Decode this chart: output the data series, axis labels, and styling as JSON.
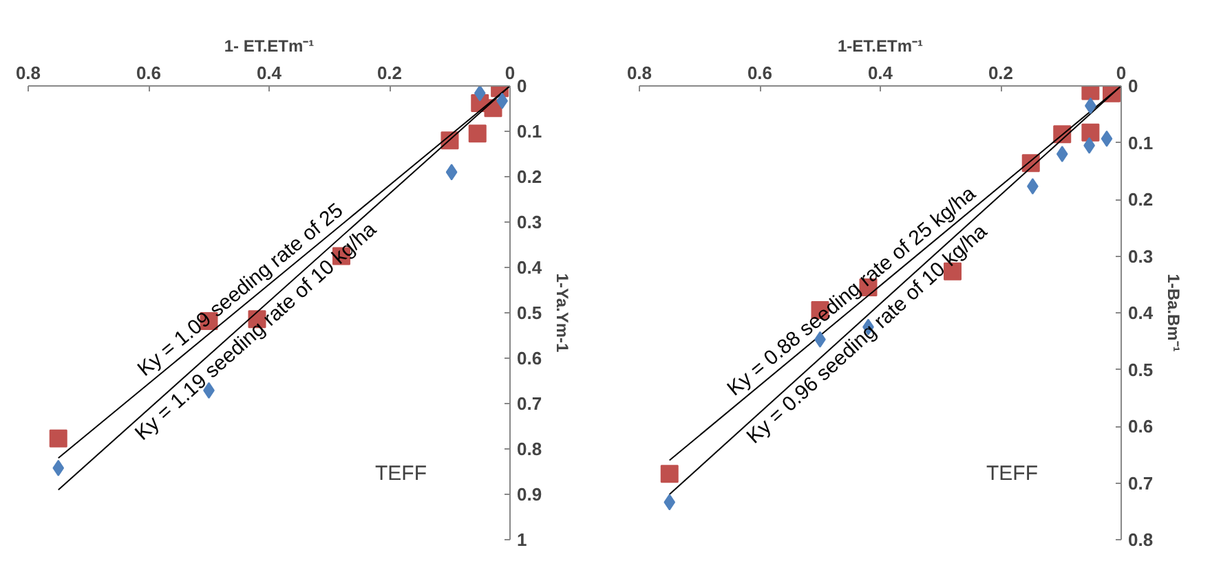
{
  "chart_data": [
    {
      "type": "scatter",
      "xlabel": "1- ET.ETm⁻¹",
      "ylabel": "1-Ya.Ym-1",
      "xlim": [
        0.8,
        0
      ],
      "ylim": [
        1,
        0
      ],
      "xticks": [
        0.8,
        0.6,
        0.4,
        0.2,
        0
      ],
      "yticks": [
        0,
        0.1,
        0.2,
        0.3,
        0.4,
        0.5,
        0.6,
        0.7,
        0.8,
        0.9,
        1
      ],
      "annotations": [
        "TEFF"
      ],
      "grid": false,
      "legend": false,
      "series": [
        {
          "type": "scatter",
          "marker": "diamond",
          "color": "#4f81bd",
          "x": [
            0.75,
            0.5,
            0.097,
            0.05,
            0.013
          ],
          "values": [
            0.842,
            0.671,
            0.19,
            0.016,
            0.033
          ]
        },
        {
          "type": "scatter",
          "marker": "square",
          "color": "#c0504d",
          "x": [
            0.75,
            0.5,
            0.42,
            0.28,
            0.1,
            0.054,
            0.05,
            0.028,
            0.017
          ],
          "values": [
            0.777,
            0.518,
            0.514,
            0.375,
            0.12,
            0.105,
            0.038,
            0.049,
            0.005
          ]
        },
        {
          "type": "line",
          "marker": "none",
          "color": "#000000",
          "name": "Ky = 1.09 seeding rate of 25",
          "x": [
            0,
            0.75
          ],
          "values": [
            0,
            0.82
          ]
        },
        {
          "type": "line",
          "marker": "none",
          "color": "#000000",
          "name": "Ky = 1.19 seeding rate of 10 kg/ha",
          "x": [
            0,
            0.75
          ],
          "values": [
            0,
            0.89
          ]
        }
      ]
    },
    {
      "type": "scatter",
      "xlabel": "1-ET.ETm⁻¹",
      "ylabel": "1-Ba.Bm⁻¹",
      "xlim": [
        0.8,
        0
      ],
      "ylim": [
        0.8,
        0
      ],
      "xticks": [
        0.8,
        0.6,
        0.4,
        0.2,
        0
      ],
      "yticks": [
        0,
        0.1,
        0.2,
        0.3,
        0.4,
        0.5,
        0.6,
        0.7,
        0.8
      ],
      "annotations": [
        "TEFF"
      ],
      "grid": false,
      "legend": false,
      "series": [
        {
          "type": "scatter",
          "marker": "diamond",
          "color": "#4f81bd",
          "x": [
            0.75,
            0.5,
            0.42,
            0.147,
            0.098,
            0.053,
            0.024,
            0.051
          ],
          "values": [
            0.734,
            0.447,
            0.425,
            0.177,
            0.12,
            0.105,
            0.093,
            0.035
          ]
        },
        {
          "type": "scatter",
          "marker": "square",
          "color": "#c0504d",
          "x": [
            0.75,
            0.5,
            0.42,
            0.28,
            0.15,
            0.098,
            0.051,
            0.051,
            0.016
          ],
          "values": [
            0.684,
            0.395,
            0.355,
            0.327,
            0.136,
            0.085,
            0.082,
            0.009,
            0.013
          ]
        },
        {
          "type": "line",
          "marker": "none",
          "color": "#000000",
          "name": "Ky = 0.88 seeding rate of 25 kg/ha",
          "x": [
            0,
            0.75
          ],
          "values": [
            0,
            0.66
          ]
        },
        {
          "type": "line",
          "marker": "none",
          "color": "#000000",
          "name": "Ky = 0.96 seeding rate of 10 kg/ha",
          "x": [
            0,
            0.75
          ],
          "values": [
            0,
            0.72
          ]
        }
      ]
    }
  ]
}
